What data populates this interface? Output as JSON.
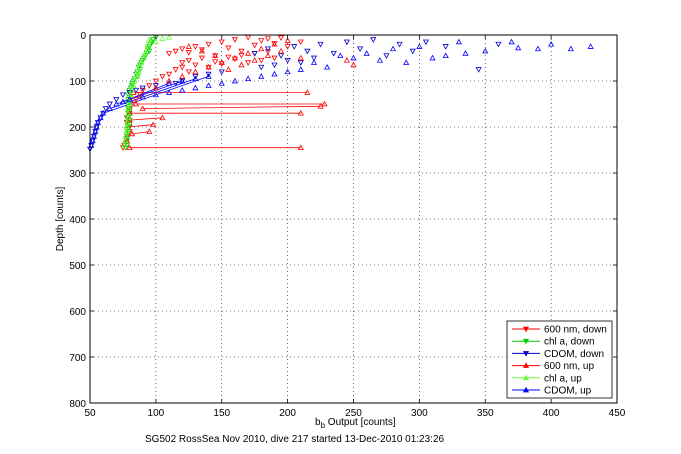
{
  "chart_data": {
    "type": "scatter",
    "xlabel_main": "b",
    "xlabel_sub": "b",
    "xlabel_rest": " Output [counts]",
    "ylabel": "Depth [counts]",
    "caption": "SG502 RossSea Nov 2010, dive 217 started 13-Dec-2010 01:23:26",
    "xlim": [
      50,
      450
    ],
    "ylim": [
      0,
      800
    ],
    "y_reversed": true,
    "grid": true,
    "legend_position": "bottom-right",
    "xticks": [
      50,
      100,
      150,
      200,
      250,
      300,
      350,
      400,
      450
    ],
    "yticks": [
      0,
      100,
      200,
      300,
      400,
      500,
      600,
      700,
      800
    ],
    "series": [
      {
        "name": "600 nm, down",
        "color": "#ff0000",
        "marker": "triangle-down",
        "points": [
          [
            110,
            40
          ],
          [
            115,
            35
          ],
          [
            120,
            30
          ],
          [
            125,
            38
          ],
          [
            130,
            25
          ],
          [
            135,
            32
          ],
          [
            140,
            20
          ],
          [
            145,
            45
          ],
          [
            150,
            15
          ],
          [
            155,
            28
          ],
          [
            160,
            10
          ],
          [
            165,
            35
          ],
          [
            170,
            5
          ],
          [
            175,
            22
          ],
          [
            180,
            12
          ],
          [
            185,
            8
          ],
          [
            190,
            18
          ],
          [
            195,
            6
          ],
          [
            200,
            25
          ],
          [
            210,
            15
          ],
          [
            120,
            60
          ],
          [
            125,
            55
          ],
          [
            130,
            65
          ],
          [
            135,
            50
          ],
          [
            140,
            70
          ],
          [
            145,
            58
          ],
          [
            150,
            62
          ],
          [
            155,
            48
          ],
          [
            160,
            52
          ],
          [
            165,
            44
          ],
          [
            170,
            60
          ],
          [
            175,
            40
          ],
          [
            180,
            55
          ],
          [
            185,
            36
          ],
          [
            190,
            50
          ],
          [
            115,
            75
          ],
          [
            120,
            70
          ],
          [
            125,
            80
          ],
          [
            105,
            90
          ],
          [
            110,
            85
          ],
          [
            100,
            100
          ],
          [
            95,
            110
          ],
          [
            90,
            120
          ],
          [
            88,
            130
          ],
          [
            85,
            140
          ],
          [
            82,
            150
          ],
          [
            80,
            160
          ],
          [
            80,
            170
          ],
          [
            78,
            180
          ],
          [
            78,
            190
          ],
          [
            80,
            200
          ],
          [
            80,
            210
          ],
          [
            78,
            220
          ],
          [
            78,
            230
          ],
          [
            76,
            240
          ],
          [
            75,
            245
          ]
        ]
      },
      {
        "name": "chl a, down",
        "color": "#00cc00",
        "marker": "triangle-down",
        "points": [
          [
            100,
            5
          ],
          [
            98,
            10
          ],
          [
            97,
            15
          ],
          [
            96,
            20
          ],
          [
            95,
            25
          ],
          [
            94,
            30
          ],
          [
            95,
            35
          ],
          [
            93,
            40
          ],
          [
            92,
            45
          ],
          [
            91,
            50
          ],
          [
            90,
            55
          ],
          [
            89,
            60
          ],
          [
            88,
            65
          ],
          [
            87,
            70
          ],
          [
            88,
            75
          ],
          [
            86,
            80
          ],
          [
            85,
            85
          ],
          [
            86,
            90
          ],
          [
            84,
            95
          ],
          [
            83,
            100
          ],
          [
            82,
            105
          ],
          [
            82,
            110
          ],
          [
            81,
            115
          ],
          [
            80,
            120
          ],
          [
            80,
            125
          ],
          [
            79,
            130
          ],
          [
            80,
            135
          ],
          [
            79,
            140
          ],
          [
            80,
            145
          ],
          [
            79,
            150
          ],
          [
            80,
            155
          ],
          [
            79,
            160
          ],
          [
            80,
            165
          ],
          [
            79,
            170
          ],
          [
            80,
            175
          ],
          [
            79,
            180
          ],
          [
            80,
            185
          ],
          [
            79,
            190
          ],
          [
            80,
            195
          ],
          [
            79,
            200
          ],
          [
            78,
            205
          ],
          [
            79,
            210
          ],
          [
            78,
            215
          ],
          [
            79,
            220
          ],
          [
            78,
            225
          ],
          [
            78,
            230
          ],
          [
            77,
            235
          ],
          [
            78,
            240
          ],
          [
            77,
            245
          ]
        ]
      },
      {
        "name": "CDOM, down",
        "color": "#0000cc",
        "marker": "triangle-down",
        "points": [
          [
            175,
            40
          ],
          [
            185,
            30
          ],
          [
            195,
            45
          ],
          [
            205,
            25
          ],
          [
            215,
            35
          ],
          [
            225,
            20
          ],
          [
            235,
            40
          ],
          [
            245,
            15
          ],
          [
            255,
            30
          ],
          [
            265,
            10
          ],
          [
            275,
            45
          ],
          [
            285,
            20
          ],
          [
            295,
            35
          ],
          [
            305,
            15
          ],
          [
            320,
            25
          ],
          [
            345,
            75
          ],
          [
            360,
            20
          ],
          [
            200,
            55
          ],
          [
            210,
            60
          ],
          [
            220,
            50
          ],
          [
            190,
            65
          ],
          [
            180,
            70
          ],
          [
            150,
            80
          ],
          [
            140,
            85
          ],
          [
            130,
            90
          ],
          [
            120,
            100
          ],
          [
            115,
            105
          ],
          [
            100,
            110
          ],
          [
            90,
            115
          ],
          [
            85,
            120
          ],
          [
            80,
            125
          ],
          [
            75,
            130
          ],
          [
            70,
            140
          ],
          [
            65,
            150
          ],
          [
            62,
            160
          ],
          [
            60,
            170
          ],
          [
            58,
            180
          ],
          [
            56,
            190
          ],
          [
            55,
            200
          ],
          [
            54,
            210
          ],
          [
            53,
            220
          ],
          [
            52,
            230
          ],
          [
            51,
            240
          ],
          [
            50,
            248
          ]
        ]
      },
      {
        "name": "600 nm, up",
        "color": "#ff0000",
        "marker": "triangle-up",
        "points": [
          [
            80,
            245
          ],
          [
            210,
            245
          ],
          [
            78,
            230
          ],
          [
            82,
            215
          ],
          [
            95,
            210
          ],
          [
            78,
            200
          ],
          [
            98,
            195
          ],
          [
            80,
            185
          ],
          [
            105,
            180
          ],
          [
            80,
            170
          ],
          [
            210,
            170
          ],
          [
            90,
            160
          ],
          [
            225,
            155
          ],
          [
            85,
            150
          ],
          [
            228,
            150
          ],
          [
            80,
            140
          ],
          [
            83,
            125
          ],
          [
            215,
            125
          ],
          [
            100,
            115
          ],
          [
            110,
            100
          ],
          [
            120,
            90
          ],
          [
            130,
            80
          ],
          [
            140,
            70
          ],
          [
            150,
            60
          ],
          [
            160,
            50
          ],
          [
            170,
            40
          ],
          [
            180,
            30
          ],
          [
            190,
            20
          ],
          [
            200,
            12
          ],
          [
            175,
            55
          ],
          [
            185,
            45
          ],
          [
            195,
            35
          ],
          [
            165,
            65
          ],
          [
            155,
            75
          ],
          [
            145,
            45
          ],
          [
            135,
            35
          ],
          [
            125,
            25
          ],
          [
            250,
            65
          ],
          [
            245,
            55
          ],
          [
            210,
            50
          ]
        ]
      },
      {
        "name": "chl a, up",
        "color": "#66ff33",
        "marker": "triangle-up",
        "points": [
          [
            95,
            10
          ],
          [
            94,
            20
          ],
          [
            93,
            30
          ],
          [
            92,
            40
          ],
          [
            91,
            50
          ],
          [
            89,
            60
          ],
          [
            88,
            70
          ],
          [
            87,
            80
          ],
          [
            86,
            90
          ],
          [
            84,
            100
          ],
          [
            83,
            110
          ],
          [
            82,
            120
          ],
          [
            81,
            130
          ],
          [
            80,
            140
          ],
          [
            80,
            150
          ],
          [
            79,
            160
          ],
          [
            79,
            170
          ],
          [
            79,
            180
          ],
          [
            78,
            190
          ],
          [
            78,
            200
          ],
          [
            78,
            210
          ],
          [
            77,
            220
          ],
          [
            77,
            230
          ],
          [
            76,
            240
          ],
          [
            100,
            15
          ],
          [
            105,
            8
          ],
          [
            110,
            5
          ]
        ]
      },
      {
        "name": "CDOM, up",
        "color": "#0000ff",
        "marker": "triangle-up",
        "points": [
          [
            430,
            25
          ],
          [
            415,
            30
          ],
          [
            400,
            20
          ],
          [
            390,
            30
          ],
          [
            375,
            28
          ],
          [
            370,
            15
          ],
          [
            350,
            35
          ],
          [
            335,
            40
          ],
          [
            330,
            15
          ],
          [
            320,
            45
          ],
          [
            310,
            50
          ],
          [
            300,
            25
          ],
          [
            290,
            60
          ],
          [
            280,
            30
          ],
          [
            270,
            55
          ],
          [
            260,
            40
          ],
          [
            250,
            50
          ],
          [
            240,
            45
          ],
          [
            230,
            70
          ],
          [
            220,
            60
          ],
          [
            210,
            75
          ],
          [
            200,
            80
          ],
          [
            190,
            85
          ],
          [
            180,
            90
          ],
          [
            170,
            95
          ],
          [
            160,
            100
          ],
          [
            150,
            105
          ],
          [
            140,
            110
          ],
          [
            130,
            115
          ],
          [
            120,
            120
          ],
          [
            110,
            125
          ],
          [
            100,
            130
          ],
          [
            90,
            135
          ],
          [
            80,
            140
          ],
          [
            75,
            145
          ],
          [
            70,
            150
          ],
          [
            65,
            160
          ],
          [
            60,
            170
          ],
          [
            58,
            180
          ],
          [
            56,
            190
          ],
          [
            55,
            200
          ],
          [
            54,
            210
          ],
          [
            53,
            220
          ],
          [
            52,
            230
          ],
          [
            51,
            240
          ],
          [
            110,
            105
          ],
          [
            120,
            100
          ],
          [
            130,
            95
          ],
          [
            140,
            90
          ]
        ]
      }
    ],
    "spikes": [
      {
        "series": 3,
        "from": [
          80,
          245
        ],
        "to": [
          210,
          245
        ]
      },
      {
        "series": 3,
        "from": [
          80,
          170
        ],
        "to": [
          210,
          170
        ]
      },
      {
        "series": 3,
        "from": [
          90,
          160
        ],
        "to": [
          225,
          155
        ]
      },
      {
        "series": 3,
        "from": [
          85,
          150
        ],
        "to": [
          228,
          150
        ]
      },
      {
        "series": 3,
        "from": [
          83,
          125
        ],
        "to": [
          215,
          125
        ]
      },
      {
        "series": 3,
        "from": [
          95,
          210
        ],
        "to": [
          82,
          215
        ]
      },
      {
        "series": 3,
        "from": [
          98,
          195
        ],
        "to": [
          78,
          200
        ]
      },
      {
        "series": 3,
        "from": [
          105,
          180
        ],
        "to": [
          80,
          185
        ]
      },
      {
        "series": 5,
        "from": [
          75,
          145
        ],
        "to": [
          110,
          105
        ]
      },
      {
        "series": 5,
        "from": [
          70,
          150
        ],
        "to": [
          120,
          100
        ]
      },
      {
        "series": 5,
        "from": [
          65,
          160
        ],
        "to": [
          130,
          95
        ]
      },
      {
        "series": 5,
        "from": [
          60,
          170
        ],
        "to": [
          140,
          90
        ]
      }
    ]
  }
}
